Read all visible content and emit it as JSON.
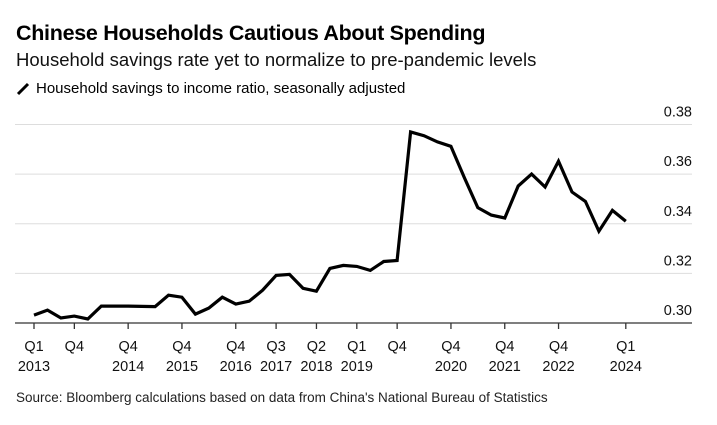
{
  "header": {
    "title": "Chinese Households Cautious About Spending",
    "subtitle": "Household savings rate yet to normalize to pre-pandemic levels",
    "legend_label": "Household savings to income ratio, seasonally adjusted",
    "legend_icon": "line-swatch-icon"
  },
  "source": "Source: Bloomberg calculations based on data from China's National Bureau of Statistics",
  "colors": {
    "line": "#000000",
    "grid": "#dddddd",
    "axis": "#333333",
    "text": "#000000"
  },
  "chart_data": {
    "type": "line",
    "title": "Chinese Households Cautious About Spending",
    "subtitle": "Household savings rate yet to normalize to pre-pandemic levels",
    "xlabel": "",
    "ylabel": "",
    "ylim": [
      0.3,
      0.38
    ],
    "y_ticks": [
      "0.30",
      "0.32",
      "0.34",
      "0.36",
      "0.38"
    ],
    "y_tick_values": [
      0.3,
      0.32,
      0.34,
      0.36,
      0.38
    ],
    "y_axis_side": "right",
    "grid": true,
    "legend_placement": "top-left",
    "x_ticks": [
      {
        "index": 0,
        "line1": "Q1",
        "line2": "2013"
      },
      {
        "index": 3,
        "line1": "Q4",
        "line2": ""
      },
      {
        "index": 7,
        "line1": "Q4",
        "line2": "2014"
      },
      {
        "index": 11,
        "line1": "Q4",
        "line2": "2015"
      },
      {
        "index": 15,
        "line1": "Q4",
        "line2": "2016"
      },
      {
        "index": 18,
        "line1": "Q3",
        "line2": "2017"
      },
      {
        "index": 21,
        "line1": "Q2",
        "line2": "2018"
      },
      {
        "index": 24,
        "line1": "Q1",
        "line2": "2019"
      },
      {
        "index": 27,
        "line1": "Q4",
        "line2": ""
      },
      {
        "index": 31,
        "line1": "Q4",
        "line2": "2020"
      },
      {
        "index": 35,
        "line1": "Q4",
        "line2": "2021"
      },
      {
        "index": 39,
        "line1": "Q4",
        "line2": "2022"
      },
      {
        "index": 44,
        "line1": "Q1",
        "line2": "2024"
      }
    ],
    "x": [
      "Q1 2013",
      "Q2 2013",
      "Q3 2013",
      "Q4 2013",
      "Q1 2014",
      "Q2 2014",
      "Q3 2014",
      "Q4 2014",
      "Q1 2015",
      "Q2 2015",
      "Q3 2015",
      "Q4 2015",
      "Q1 2016",
      "Q2 2016",
      "Q3 2016",
      "Q4 2016",
      "Q1 2017",
      "Q2 2017",
      "Q3 2017",
      "Q4 2017",
      "Q1 2018",
      "Q2 2018",
      "Q3 2018",
      "Q4 2018",
      "Q1 2019",
      "Q2 2019",
      "Q3 2019",
      "Q4 2019",
      "Q1 2020",
      "Q2 2020",
      "Q3 2020",
      "Q4 2020",
      "Q1 2021",
      "Q2 2021",
      "Q3 2021",
      "Q4 2021",
      "Q1 2022",
      "Q2 2022",
      "Q3 2022",
      "Q4 2022",
      "Q1 2023",
      "Q2 2023",
      "Q3 2023",
      "Q4 2023",
      "Q1 2024"
    ],
    "series": [
      {
        "name": "Household savings to income ratio, seasonally adjusted",
        "values": [
          0.3032,
          0.3052,
          0.302,
          0.3028,
          0.3016,
          0.3068,
          0.3068,
          0.3068,
          0.3067,
          0.3066,
          0.3112,
          0.3104,
          0.3036,
          0.306,
          0.3104,
          0.3076,
          0.3088,
          0.3132,
          0.3192,
          0.3196,
          0.314,
          0.3128,
          0.322,
          0.3232,
          0.3228,
          0.3212,
          0.3248,
          0.3252,
          0.377,
          0.3755,
          0.373,
          0.3712,
          0.3585,
          0.3465,
          0.3435,
          0.3423,
          0.3552,
          0.36,
          0.3548,
          0.3652,
          0.3528,
          0.349,
          0.337,
          0.3454,
          0.341
        ]
      }
    ]
  }
}
